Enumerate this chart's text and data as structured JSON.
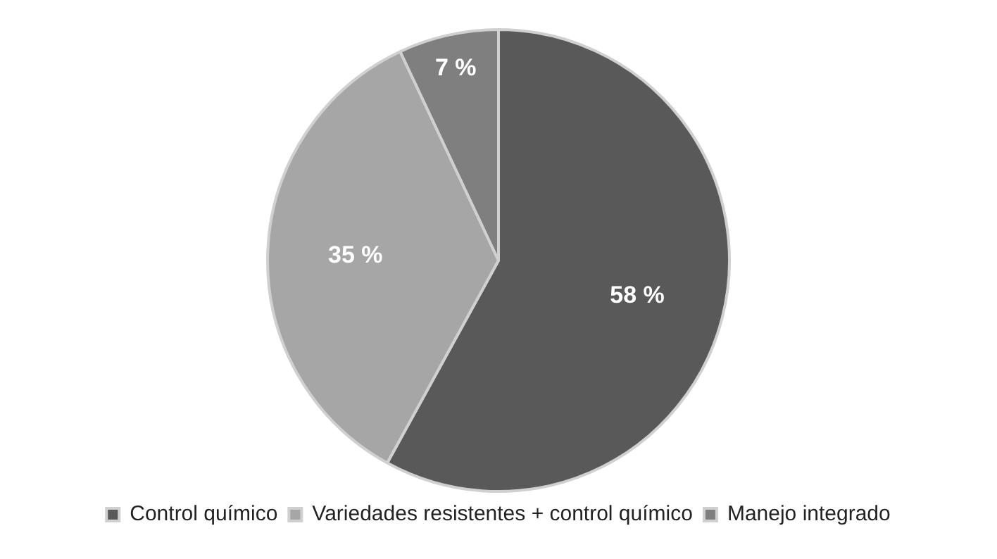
{
  "chart_data": {
    "type": "pie",
    "categories": [
      "Control químico",
      "Variedades resistentes + control químico",
      "Manejo integrado"
    ],
    "values": [
      58,
      35,
      7
    ],
    "colors": [
      "#595959",
      "#a6a6a6",
      "#7f7f7f"
    ],
    "value_labels": [
      "58 %",
      "35 %",
      "7 %"
    ],
    "legend": "bottom"
  }
}
